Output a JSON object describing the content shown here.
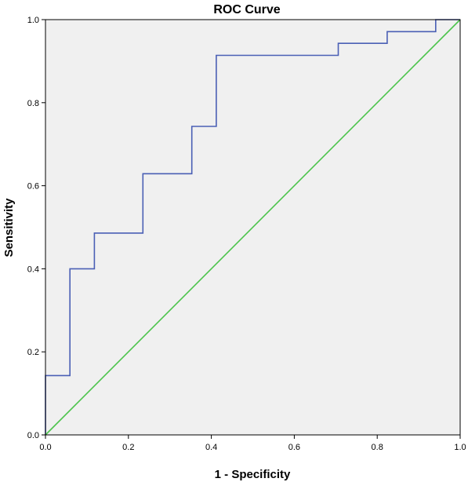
{
  "chart_data": {
    "type": "line",
    "title": "ROC Curve",
    "xlabel": "1 - Specificity",
    "ylabel": "Sensitivity",
    "xlim": [
      0.0,
      1.0
    ],
    "ylim": [
      0.0,
      1.0
    ],
    "x_ticks": [
      "0.0",
      "0.2",
      "0.4",
      "0.6",
      "0.8",
      "1.0"
    ],
    "y_ticks": [
      "0.0",
      "0.2",
      "0.4",
      "0.6",
      "0.8",
      "1.0"
    ],
    "grid": false,
    "legend": "none",
    "plot_background": "#f0f0f0",
    "series": [
      {
        "role": "roc-curve",
        "color": "#4a5fb5",
        "step": true,
        "x": [
          0.0,
          0.0,
          0.059,
          0.059,
          0.118,
          0.118,
          0.235,
          0.235,
          0.353,
          0.353,
          0.412,
          0.412,
          0.706,
          0.706,
          0.824,
          0.824,
          0.941,
          0.941,
          1.0
        ],
        "y": [
          0.0,
          0.143,
          0.143,
          0.4,
          0.4,
          0.486,
          0.486,
          0.629,
          0.629,
          0.743,
          0.743,
          0.914,
          0.914,
          0.943,
          0.943,
          0.971,
          0.971,
          1.0,
          1.0
        ]
      },
      {
        "role": "reference-line",
        "color": "#4cc44c",
        "x": [
          0.0,
          1.0
        ],
        "y": [
          0.0,
          1.0
        ]
      }
    ]
  }
}
